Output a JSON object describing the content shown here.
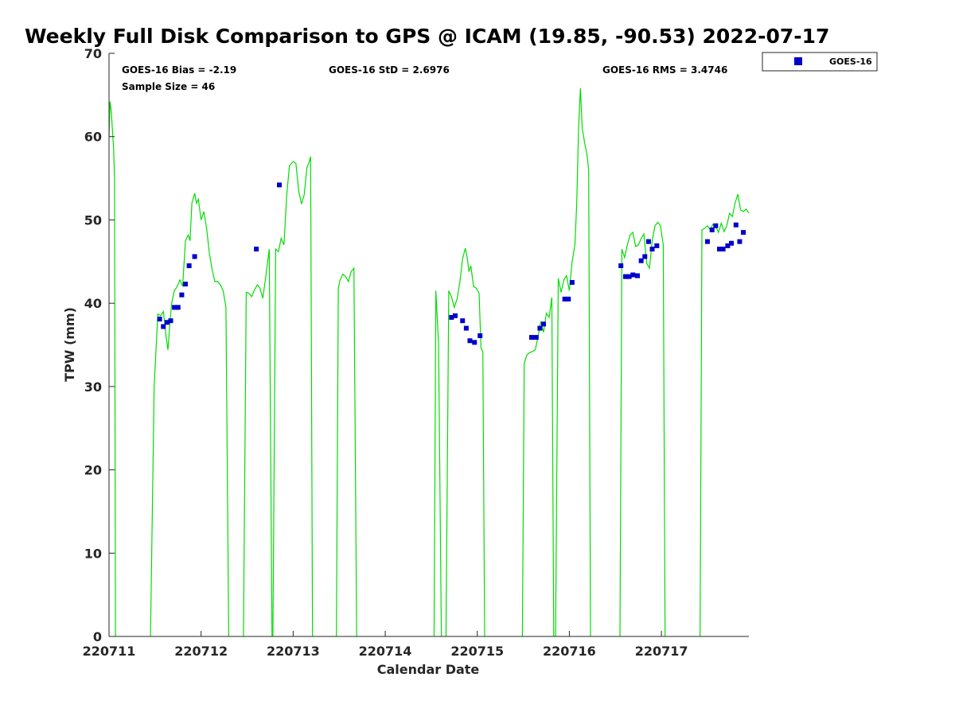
{
  "chart_data": {
    "type": "scatter",
    "title": "Weekly Full Disk Comparison to GPS @ ICAM (19.85, -90.53) 2022-07-17",
    "xlabel": "Calendar Date",
    "ylabel": "TPW (mm)",
    "xlim": [
      0,
      6.95
    ],
    "ylim": [
      0,
      70
    ],
    "x_tick_values": [
      0,
      1,
      2,
      3,
      4,
      5,
      6
    ],
    "x_tick_labels": [
      "220711",
      "220712",
      "220713",
      "220714",
      "220715",
      "220716",
      "220717"
    ],
    "y_tick_values": [
      0,
      10,
      20,
      30,
      40,
      50,
      60,
      70
    ],
    "y_tick_labels": [
      "0",
      "10",
      "20",
      "30",
      "40",
      "50",
      "60",
      "70"
    ],
    "grid": false,
    "legend_position": "top-right",
    "stats": {
      "bias": "GOES-16 Bias = -2.19",
      "sample_size": "Sample Size = 46",
      "std": "GOES-16 StD = 2.6976",
      "rms": "GOES-16 RMS = 3.4746"
    },
    "series": [
      {
        "name": "GOES-16",
        "kind": "scatter",
        "color": "#0000cc",
        "x": [
          0.55,
          0.59,
          0.63,
          0.67,
          0.71,
          0.75,
          0.79,
          0.83,
          0.87,
          0.93,
          1.6,
          1.85,
          3.72,
          3.76,
          3.84,
          3.88,
          3.92,
          3.97,
          4.03,
          4.59,
          4.64,
          4.68,
          4.72,
          4.95,
          4.99,
          5.03,
          5.56,
          5.61,
          5.65,
          5.69,
          5.74,
          5.78,
          5.82,
          5.86,
          5.9,
          5.95,
          6.5,
          6.55,
          6.59,
          6.63,
          6.67,
          6.72,
          6.76,
          6.81,
          6.85,
          6.89
        ],
        "y": [
          38.1,
          37.2,
          37.7,
          37.9,
          39.5,
          39.5,
          41.0,
          42.3,
          44.5,
          45.6,
          46.5,
          54.2,
          38.3,
          38.5,
          37.9,
          37.0,
          35.5,
          35.3,
          36.1,
          35.9,
          35.9,
          37.0,
          37.5,
          40.5,
          40.5,
          42.5,
          44.5,
          43.2,
          43.2,
          43.4,
          43.3,
          45.1,
          45.6,
          47.4,
          46.5,
          46.9,
          47.4,
          48.8,
          49.3,
          46.5,
          46.5,
          46.9,
          47.2,
          49.4,
          47.4,
          48.5
        ]
      },
      {
        "name": "",
        "kind": "line",
        "color": "#00dd00",
        "segments": [
          {
            "x": [
              0,
              0.01,
              0.02,
              0.03,
              0.05,
              0.06,
              0.07
            ],
            "y": [
              60.0,
              64.2,
              63.5,
              62.0,
              58.5,
              55.0,
              0
            ]
          },
          {
            "x": [
              0.45,
              0.49,
              0.53,
              0.56,
              0.59,
              0.62,
              0.64,
              0.66,
              0.68,
              0.71,
              0.74,
              0.77,
              0.8,
              0.83,
              0.86,
              0.88,
              0.9,
              0.93,
              0.95,
              0.97,
              1.0,
              1.03,
              1.06,
              1.09,
              1.12,
              1.15,
              1.18,
              1.21,
              1.24,
              1.27,
              1.3
            ],
            "y": [
              0,
              30.0,
              38.7,
              38.5,
              39.0,
              36.0,
              34.4,
              37.5,
              40.0,
              41.5,
              42.0,
              42.8,
              42.0,
              47.5,
              48.2,
              47.5,
              52.0,
              53.2,
              52.0,
              52.5,
              50.0,
              51.0,
              49.0,
              46.0,
              44.0,
              42.6,
              42.6,
              42.2,
              41.5,
              39.5,
              0
            ]
          },
          {
            "x": [
              1.46,
              1.49,
              1.52,
              1.55,
              1.58,
              1.61,
              1.64,
              1.67,
              1.7,
              1.74,
              1.77
            ],
            "y": [
              0,
              41.3,
              41.2,
              40.8,
              41.6,
              42.2,
              41.8,
              40.6,
              43.0,
              46.5,
              0
            ]
          },
          {
            "x": [
              1.78,
              1.81,
              1.84,
              1.87,
              1.9,
              1.93,
              1.96,
              2.0,
              2.03,
              2.06,
              2.09,
              2.12,
              2.15,
              2.17,
              2.19,
              2.21
            ],
            "y": [
              0,
              46.5,
              46.2,
              47.8,
              47.0,
              53.0,
              56.5,
              57.0,
              56.8,
              53.5,
              51.9,
              53.0,
              56.3,
              56.8,
              57.6,
              0
            ]
          },
          {
            "x": [
              2.47,
              2.49,
              2.51,
              2.54,
              2.57,
              2.6,
              2.63,
              2.66,
              2.69
            ],
            "y": [
              0,
              41.8,
              42.8,
              43.5,
              43.2,
              42.6,
              43.8,
              44.2,
              0
            ]
          },
          {
            "x": [
              3.53,
              3.55,
              3.58,
              3.61
            ],
            "y": [
              0,
              41.5,
              35.0,
              0
            ]
          },
          {
            "x": [
              3.66,
              3.69,
              3.72,
              3.75,
              3.78,
              3.81,
              3.84,
              3.87,
              3.89,
              3.91,
              3.93,
              3.96,
              3.99,
              4.02,
              4.04,
              4.06,
              4.08
            ],
            "y": [
              0,
              41.5,
              40.8,
              39.5,
              40.5,
              42.5,
              45.3,
              46.6,
              45.5,
              43.8,
              44.5,
              42.0,
              41.8,
              41.2,
              34.6,
              34.2,
              0
            ]
          },
          {
            "x": [
              4.49,
              4.51,
              4.54,
              4.57,
              4.6,
              4.63,
              4.66,
              4.69,
              4.72,
              4.75,
              4.78,
              4.81,
              4.83
            ],
            "y": [
              0,
              32.8,
              33.8,
              34.1,
              34.2,
              34.4,
              36.0,
              37.8,
              36.5,
              38.8,
              38.3,
              40.7,
              0
            ]
          },
          {
            "x": [
              4.85,
              4.88,
              4.91,
              4.94,
              4.97,
              5.0,
              5.03,
              5.06,
              5.08,
              5.1,
              5.12,
              5.14,
              5.17,
              5.19,
              5.21,
              5.23
            ],
            "y": [
              0,
              43.0,
              41.3,
              42.8,
              43.3,
              41.5,
              45.0,
              47.0,
              52.0,
              61.0,
              65.8,
              61.0,
              59.0,
              58.0,
              56.0,
              0
            ]
          },
          {
            "x": [
              5.55,
              5.57,
              5.6,
              5.63,
              5.66,
              5.69,
              5.72,
              5.75,
              5.78,
              5.81,
              5.84,
              5.87,
              5.9,
              5.93,
              5.96,
              5.99,
              6.02,
              6.04
            ],
            "y": [
              0,
              46.5,
              45.5,
              47.0,
              48.2,
              48.5,
              46.8,
              47.0,
              47.8,
              48.3,
              44.8,
              44.2,
              47.5,
              49.3,
              49.7,
              49.3,
              47.0,
              0
            ]
          },
          {
            "x": [
              6.42,
              6.44,
              6.47,
              6.5,
              6.53,
              6.56,
              6.59,
              6.62,
              6.65,
              6.68,
              6.71,
              6.74,
              6.77,
              6.8,
              6.83,
              6.86,
              6.89,
              6.92,
              6.95
            ],
            "y": [
              0,
              48.8,
              49.0,
              49.3,
              48.8,
              49.5,
              49.2,
              48.5,
              49.6,
              48.6,
              49.3,
              50.8,
              50.4,
              52.0,
              53.1,
              51.2,
              51.0,
              51.3,
              50.8
            ]
          }
        ]
      }
    ]
  }
}
